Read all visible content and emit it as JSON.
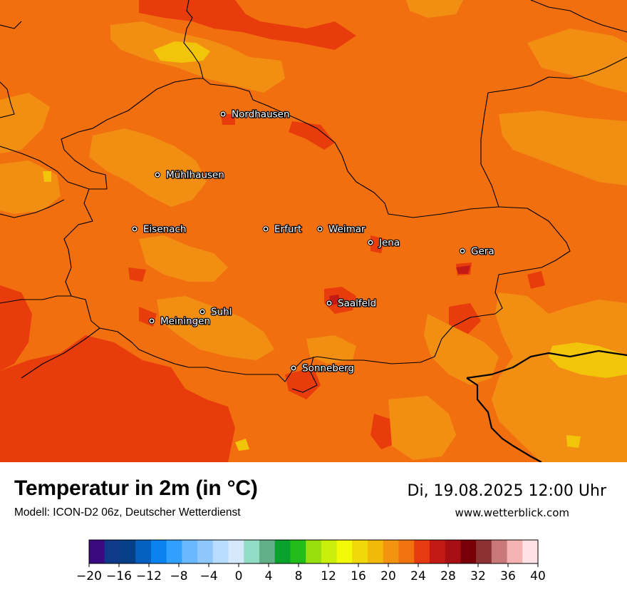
{
  "title": "Temperatur in 2m (in °C)",
  "subtitle": "Modell: ICON-D2 06z, Deutscher Wetterdienst",
  "datetime": "Di, 19.08.2025 12:00 Uhr",
  "website": "www.wetterblick.com",
  "cities": [
    {
      "name": "Nordhausen"
    },
    {
      "name": "Mühlhausen"
    },
    {
      "name": "Eisenach"
    },
    {
      "name": "Erfurt"
    },
    {
      "name": "Weimar"
    },
    {
      "name": "Jena"
    },
    {
      "name": "Gera"
    },
    {
      "name": "Saalfeld"
    },
    {
      "name": "Suhl"
    },
    {
      "name": "Meiningen"
    },
    {
      "name": "Sonneberg"
    }
  ],
  "colorbar": {
    "ticks": [
      "−20",
      "−16",
      "−12",
      "−8",
      "−4",
      "0",
      "4",
      "8",
      "12",
      "16",
      "20",
      "24",
      "28",
      "32",
      "36",
      "40"
    ],
    "colors": [
      "#3a0a80",
      "#0f3a8a",
      "#063f85",
      "#0660c0",
      "#0a82f0",
      "#2fa0ff",
      "#6ab8ff",
      "#8ec7fb",
      "#b8dcfc",
      "#d6e9fc",
      "#93dcc6",
      "#62b08a",
      "#0aa12c",
      "#22bd1a",
      "#98dd0e",
      "#c8ee0a",
      "#f2fa0a",
      "#f0d80a",
      "#f2b90a",
      "#f29410",
      "#f27210",
      "#e83a10",
      "#c41a16",
      "#a80f15",
      "#7a0007",
      "#8c3232",
      "#c87878",
      "#f4b2b2",
      "#ffe2e6"
    ]
  },
  "field_colors": {
    "base": "#f26f10",
    "warm": "#e83c0c",
    "mild": "#f28f12",
    "cool": "#f2c50a",
    "hot": "#c41a16"
  }
}
